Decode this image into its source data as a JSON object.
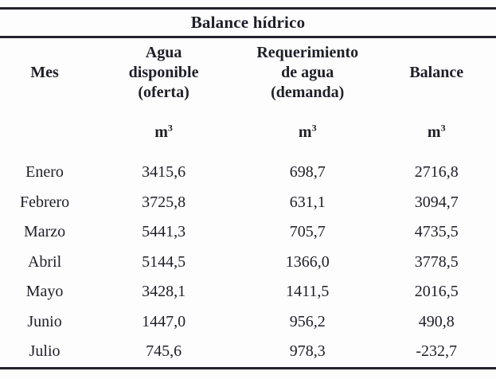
{
  "page": {
    "background": "#fdfdfd",
    "text_color": "#1e1e28",
    "rule_color": "#23232c"
  },
  "table": {
    "title": "Balance hídrico",
    "columns": [
      {
        "label": "Mes",
        "unit_base": "",
        "unit_sup": ""
      },
      {
        "label": "Agua\ndisponible\n(oferta)",
        "unit_base": "m",
        "unit_sup": "3"
      },
      {
        "label": "Requerimiento\nde agua\n(demanda)",
        "unit_base": "m",
        "unit_sup": "3"
      },
      {
        "label": "Balance",
        "unit_base": "m",
        "unit_sup": "3"
      }
    ],
    "rows": [
      {
        "mes": "Enero",
        "oferta": "3415,6",
        "demanda": "698,7",
        "balance": "2716,8"
      },
      {
        "mes": "Febrero",
        "oferta": "3725,8",
        "demanda": "631,1",
        "balance": "3094,7"
      },
      {
        "mes": "Marzo",
        "oferta": "5441,3",
        "demanda": "705,7",
        "balance": "4735,5"
      },
      {
        "mes": "Abril",
        "oferta": "5144,5",
        "demanda": "1366,0",
        "balance": "3778,5"
      },
      {
        "mes": "Mayo",
        "oferta": "3428,1",
        "demanda": "1411,5",
        "balance": "2016,5"
      },
      {
        "mes": "Junio",
        "oferta": "1447,0",
        "demanda": "956,2",
        "balance": "490,8"
      },
      {
        "mes": "Julio",
        "oferta": "745,6",
        "demanda": "978,3",
        "balance": "-232,7"
      }
    ]
  }
}
